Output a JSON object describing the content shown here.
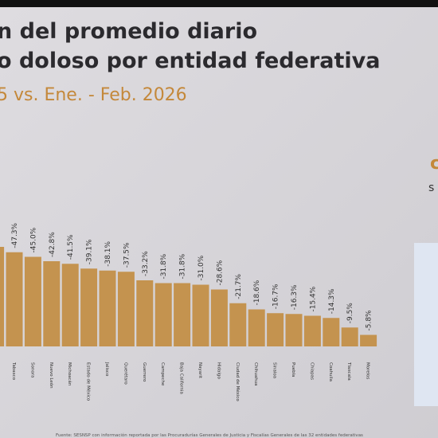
{
  "chart_data": {
    "type": "bar",
    "title_lines": [
      "n del promedio diario",
      "o doloso por entidad federativa"
    ],
    "subtitle": "5 vs. Ene. - Feb. 2026",
    "side_text": [
      "c",
      "s"
    ],
    "source": "Fuente: SESNSP con información reportada por las Procuradurías Generales de Justicia y Fiscalías Generales de las 32 entidades federativas",
    "categories": [
      null,
      "Tabasco",
      "Sonora",
      "Nuevo León",
      "Michoacán",
      "Estado de México",
      "Jalisco",
      "Querétaro",
      "Guerrero",
      "Campeche",
      "Baja California",
      "Nayarit",
      "Hidalgo",
      "Ciudad de México",
      "Chihuahua",
      "Sinaloa",
      "Puebla",
      "Chiapas",
      "Coahuila",
      "Tlaxcala",
      "Morelos"
    ],
    "values": [
      -50,
      -47.3,
      -45.0,
      -42.8,
      -41.5,
      -39.1,
      -38.1,
      -37.5,
      -33.2,
      -31.8,
      -31.8,
      -31.0,
      -28.6,
      -21.7,
      -18.6,
      -16.7,
      -16.3,
      -15.4,
      -14.3,
      -9.5,
      -5.8
    ],
    "value_labels": [
      null,
      "-47.3%",
      "-45.0%",
      "-42.8%",
      "-41.5%",
      "-39.1%",
      "-38.1%",
      "-37.5%",
      "-33.2%",
      "-31.8%",
      "-31.8%",
      "-31.0%",
      "-28.6%",
      "-21.7%",
      "-18.6%",
      "-16.7%",
      "-16.3%",
      "-15.4%",
      "-14.3%",
      "-9.5%",
      "-5.8%"
    ],
    "color": "#c4934f",
    "ylim": [
      0,
      -60
    ]
  }
}
